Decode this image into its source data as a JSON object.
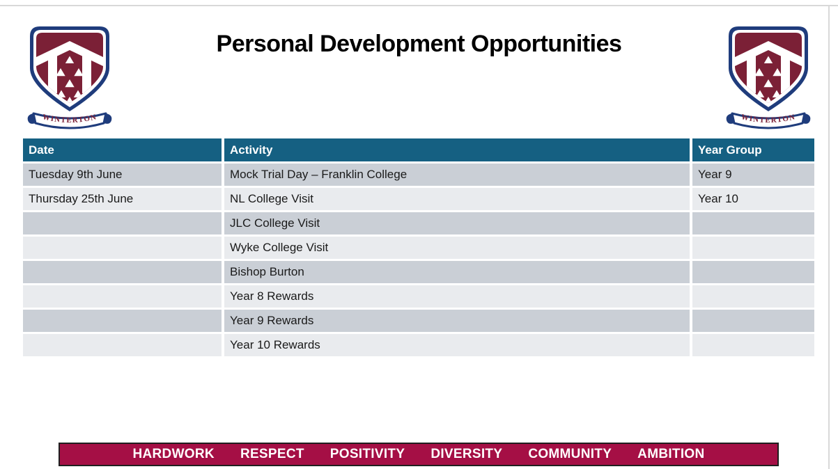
{
  "page": {
    "title": "Personal Development Opportunities"
  },
  "logo": {
    "banner_text": "WINTERTON",
    "colors": {
      "navy": "#1f3c7c",
      "maroon": "#7b2036",
      "white": "#ffffff"
    }
  },
  "table": {
    "headers": [
      "Date",
      "Activity",
      "Year Group"
    ],
    "rows": [
      {
        "date": "Tuesday 9th June",
        "activity": "Mock Trial Day – Franklin College",
        "year_group": "Year 9"
      },
      {
        "date": "Thursday 25th June",
        "activity": "NL College Visit",
        "year_group": "Year 10"
      },
      {
        "date": "",
        "activity": "JLC College Visit",
        "year_group": ""
      },
      {
        "date": "",
        "activity": "Wyke College Visit",
        "year_group": ""
      },
      {
        "date": "",
        "activity": "Bishop Burton",
        "year_group": ""
      },
      {
        "date": "",
        "activity": "Year 8 Rewards",
        "year_group": ""
      },
      {
        "date": "",
        "activity": "Year 9 Rewards",
        "year_group": ""
      },
      {
        "date": "",
        "activity": "Year 10 Rewards",
        "year_group": ""
      }
    ],
    "colors": {
      "header_bg": "#156082",
      "row_dark": "#cacfd6",
      "row_light": "#e9ebee"
    }
  },
  "footer": {
    "values": [
      "HARDWORK",
      "RESPECT",
      "POSITIVITY",
      "DIVERSITY",
      "COMMUNITY",
      "AMBITION"
    ],
    "bg_color": "#a50f45"
  }
}
